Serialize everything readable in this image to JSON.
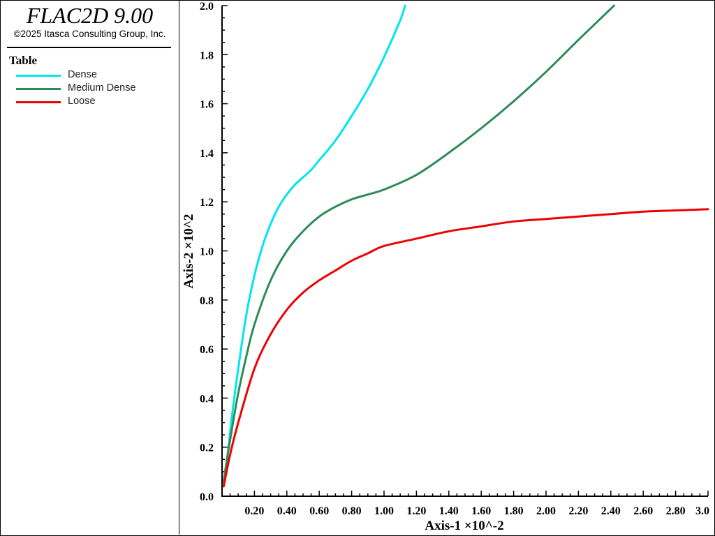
{
  "header": {
    "app_title": "FLAC2D 9.00",
    "copyright": "©2025 Itasca Consulting Group, Inc."
  },
  "legend": {
    "title": "Table",
    "items": [
      {
        "label": "Dense",
        "color": "#00e5ee"
      },
      {
        "label": "Medium Dense",
        "color": "#2e8b57"
      },
      {
        "label": "Loose",
        "color": "#ee0000"
      }
    ]
  },
  "chart_data": {
    "type": "line",
    "xlabel": "Axis-1 ×10^-2",
    "ylabel": "Axis-2 ×10^2",
    "xlim": [
      0,
      3.0
    ],
    "ylim": [
      0,
      2.0
    ],
    "x_ticks": [
      "0.20",
      "0.40",
      "0.60",
      "0.80",
      "1.00",
      "1.20",
      "1.40",
      "1.60",
      "1.80",
      "2.00",
      "2.20",
      "2.40",
      "2.60",
      "2.80",
      "3.0"
    ],
    "y_ticks": [
      "0.0",
      "0.2",
      "0.4",
      "0.6",
      "0.8",
      "1.0",
      "1.2",
      "1.4",
      "1.6",
      "1.8",
      "2.0"
    ],
    "grid": false,
    "series": [
      {
        "name": "Dense",
        "color": "#00e5ee",
        "x": [
          0.01,
          0.03,
          0.06,
          0.1,
          0.15,
          0.2,
          0.25,
          0.3,
          0.35,
          0.4,
          0.45,
          0.5,
          0.55,
          0.6,
          0.7,
          0.8,
          0.9,
          1.0,
          1.1,
          1.13
        ],
        "y": [
          0.05,
          0.14,
          0.32,
          0.52,
          0.74,
          0.9,
          1.02,
          1.11,
          1.18,
          1.23,
          1.27,
          1.3,
          1.33,
          1.37,
          1.45,
          1.55,
          1.66,
          1.79,
          1.94,
          2.0
        ]
      },
      {
        "name": "Medium Dense",
        "color": "#2e8b57",
        "x": [
          0.01,
          0.03,
          0.06,
          0.1,
          0.15,
          0.2,
          0.3,
          0.4,
          0.5,
          0.6,
          0.7,
          0.8,
          0.9,
          1.0,
          1.2,
          1.4,
          1.6,
          1.8,
          2.0,
          2.2,
          2.42
        ],
        "y": [
          0.06,
          0.15,
          0.27,
          0.42,
          0.57,
          0.7,
          0.88,
          1.0,
          1.08,
          1.14,
          1.18,
          1.21,
          1.23,
          1.25,
          1.31,
          1.4,
          1.5,
          1.61,
          1.73,
          1.86,
          2.0
        ]
      },
      {
        "name": "Loose",
        "color": "#ee0000",
        "x": [
          0.01,
          0.05,
          0.1,
          0.2,
          0.3,
          0.4,
          0.5,
          0.6,
          0.7,
          0.8,
          0.9,
          1.0,
          1.2,
          1.4,
          1.6,
          1.8,
          2.0,
          2.2,
          2.4,
          2.6,
          2.8,
          3.0
        ],
        "y": [
          0.04,
          0.17,
          0.3,
          0.52,
          0.66,
          0.76,
          0.83,
          0.88,
          0.92,
          0.96,
          0.99,
          1.02,
          1.05,
          1.08,
          1.1,
          1.12,
          1.13,
          1.14,
          1.15,
          1.16,
          1.165,
          1.17
        ]
      }
    ]
  }
}
